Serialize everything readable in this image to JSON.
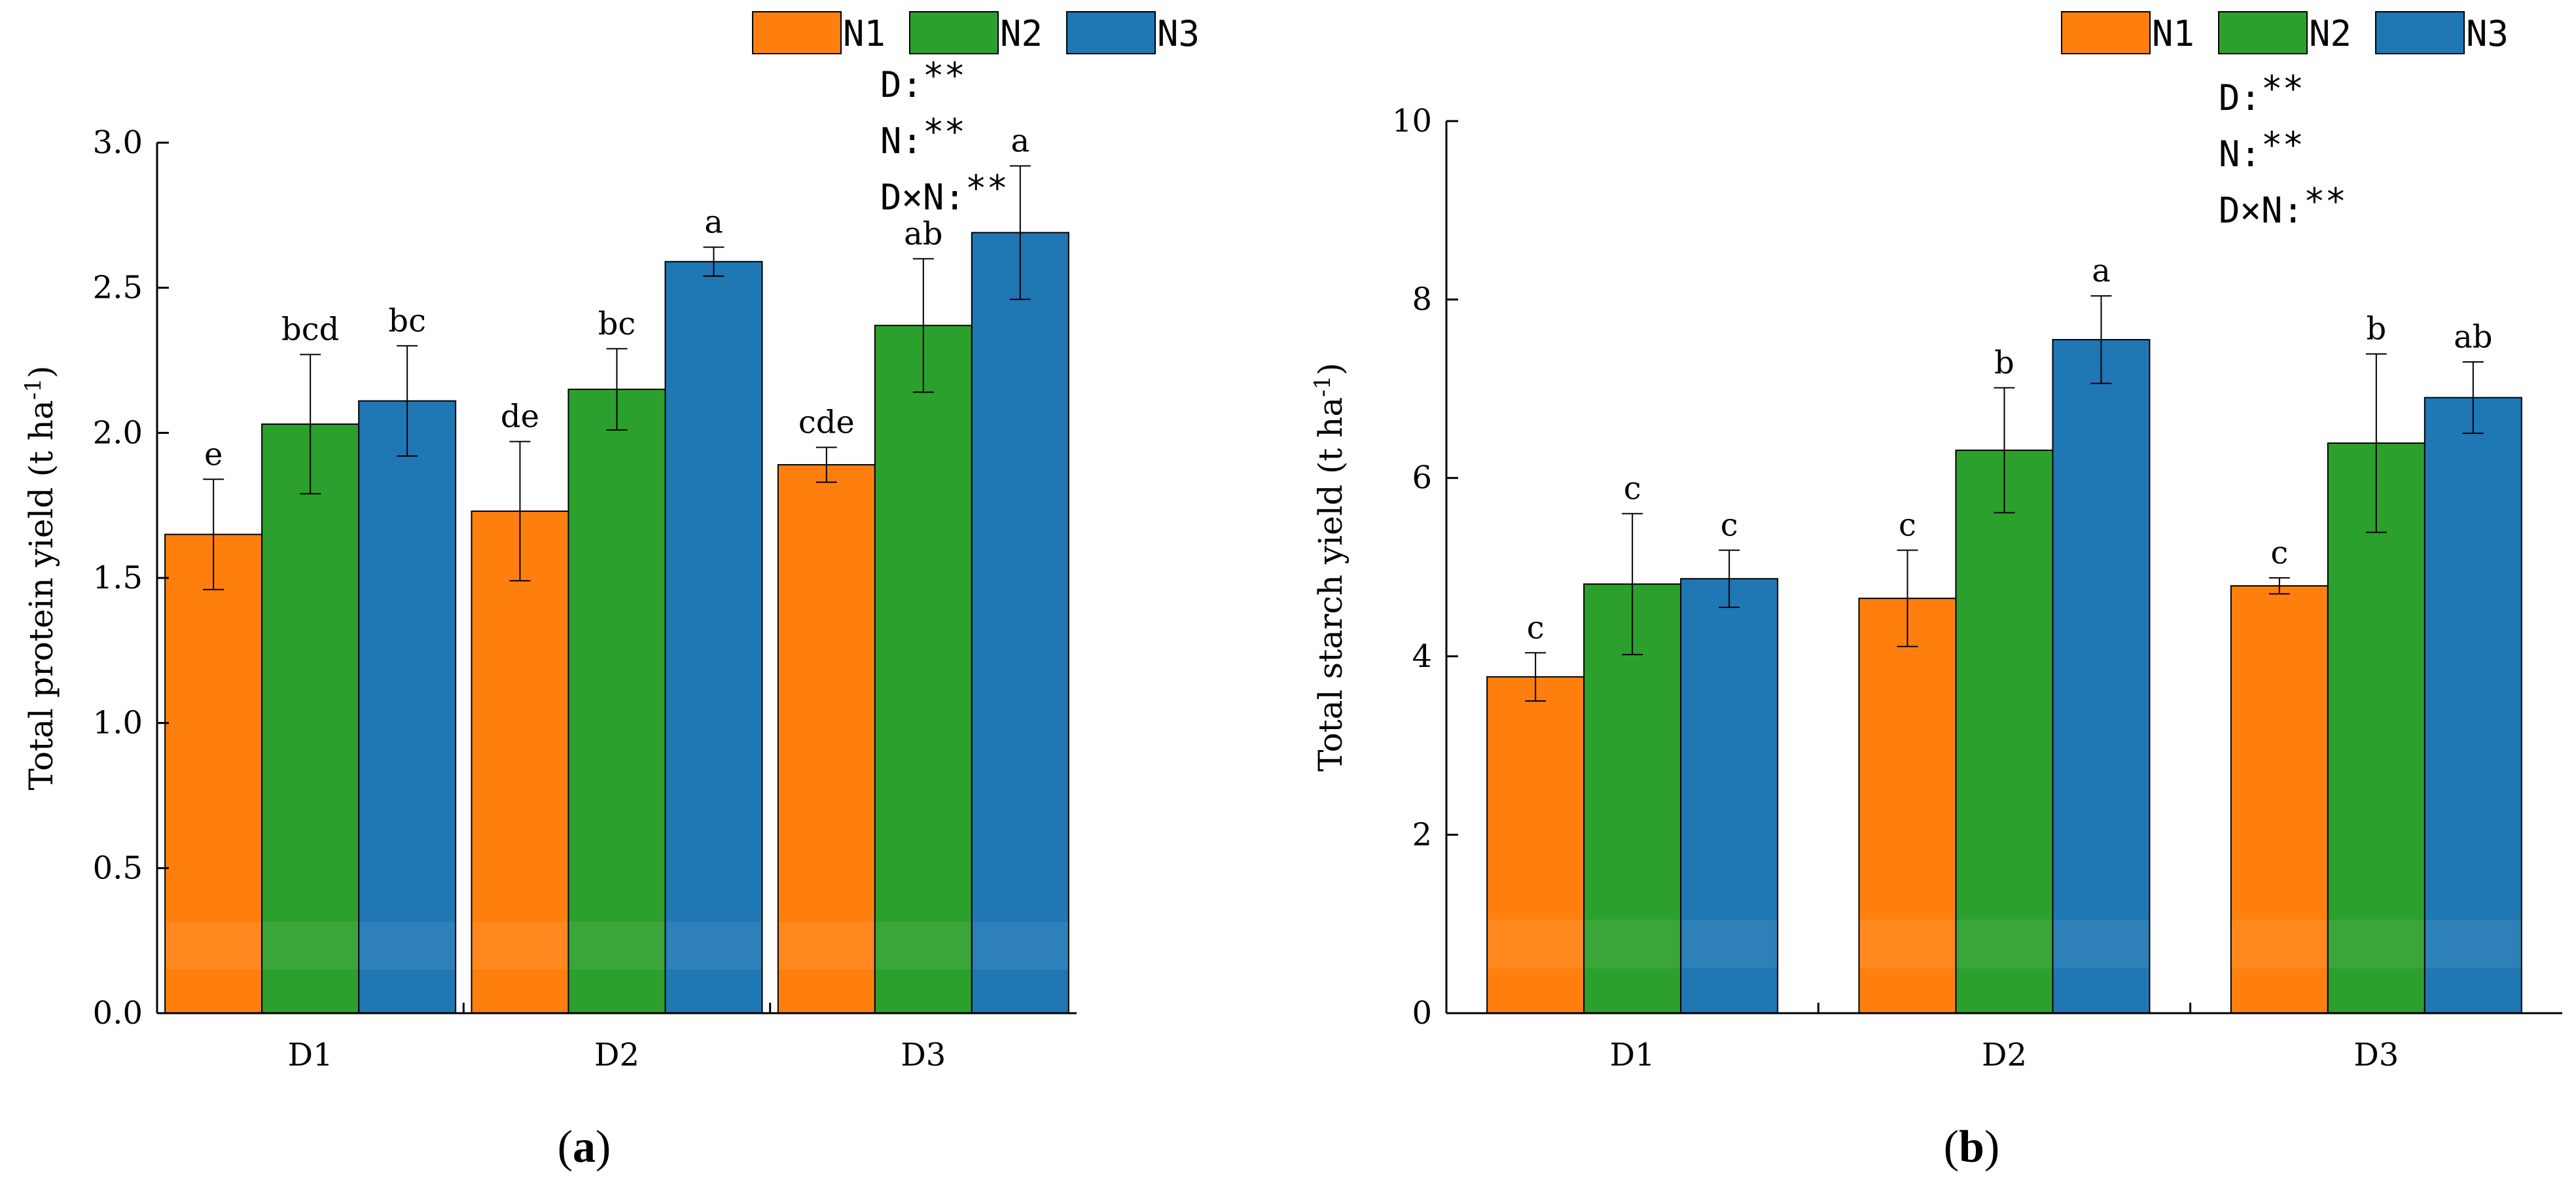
{
  "colors": {
    "N1": "#ff7f0e",
    "N2": "#2ca02c",
    "N3": "#1f77b4"
  },
  "chart_data": [
    {
      "type": "bar",
      "panel": "a",
      "categories": [
        "D1",
        "D2",
        "D3"
      ],
      "series": [
        {
          "name": "N1",
          "values": [
            1.65,
            1.73,
            1.89
          ],
          "errors": [
            0.19,
            0.24,
            0.06
          ],
          "letters": [
            "e",
            "de",
            "cde"
          ]
        },
        {
          "name": "N2",
          "values": [
            2.03,
            2.15,
            2.37
          ],
          "errors": [
            0.24,
            0.14,
            0.23
          ],
          "letters": [
            "bcd",
            "bc",
            "ab"
          ]
        },
        {
          "name": "N3",
          "values": [
            2.11,
            2.59,
            2.69
          ],
          "errors": [
            0.19,
            0.05,
            0.23
          ],
          "letters": [
            "bc",
            "a",
            "a"
          ]
        }
      ],
      "ylabel": "Total protein yield (t ha",
      "ylabel_sup": "-1",
      "ylabel_end": ")",
      "ylim": [
        0,
        3.0
      ],
      "yticks": [
        0,
        0.5,
        1.0,
        1.5,
        2.0,
        2.5,
        3.0
      ],
      "ytick_labels": [
        "0.0",
        "0.5",
        "1.0",
        "1.5",
        "2.0",
        "2.5",
        "3.0"
      ],
      "stats": {
        "D": "D:",
        "N": "N:",
        "DxN": "D×N:",
        "stars": "**"
      },
      "legend": [
        "N1",
        "N2",
        "N3"
      ],
      "label": "a"
    },
    {
      "type": "bar",
      "panel": "b",
      "categories": [
        "D1",
        "D2",
        "D3"
      ],
      "series": [
        {
          "name": "N1",
          "values": [
            3.77,
            4.65,
            4.79
          ],
          "errors": [
            0.27,
            0.54,
            0.09
          ],
          "letters": [
            "c",
            "c",
            "c"
          ]
        },
        {
          "name": "N2",
          "values": [
            4.81,
            6.31,
            6.39
          ],
          "errors": [
            0.79,
            0.7,
            1.0
          ],
          "letters": [
            "c",
            "b",
            "b"
          ]
        },
        {
          "name": "N3",
          "values": [
            4.87,
            7.55,
            6.9
          ],
          "errors": [
            0.32,
            0.49,
            0.4
          ],
          "letters": [
            "c",
            "a",
            "ab"
          ]
        }
      ],
      "ylabel": "Total starch yield (t ha",
      "ylabel_sup": "-1",
      "ylabel_end": ")",
      "ylim": [
        0,
        10
      ],
      "yticks": [
        0,
        2,
        4,
        6,
        8,
        10
      ],
      "ytick_labels": [
        "0",
        "2",
        "4",
        "6",
        "8",
        "10"
      ],
      "stats": {
        "D": "D:",
        "N": "N:",
        "DxN": "D×N:",
        "stars": "**"
      },
      "legend": [
        "N1",
        "N2",
        "N3"
      ],
      "label": "b"
    }
  ]
}
